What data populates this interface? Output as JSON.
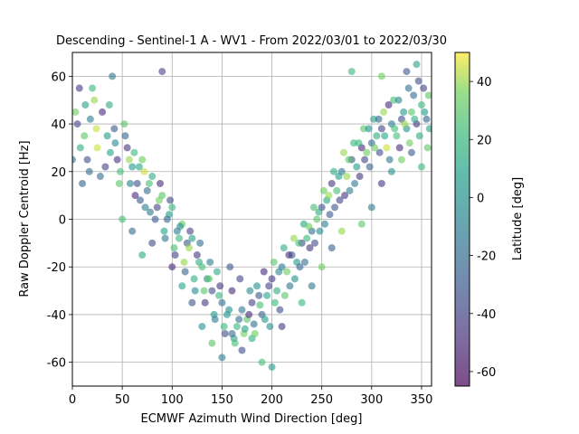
{
  "chart_data": {
    "type": "scatter",
    "title": "Descending - Sentinel-1 A - WV1 - From 2022/03/01 to 2022/03/30",
    "xlabel": "ECMWF Azimuth Wind Direction [deg]",
    "ylabel": "Raw Doppler Centroid [Hz]",
    "xlim": [
      0,
      360
    ],
    "ylim": [
      -70,
      70
    ],
    "xticks": [
      0,
      50,
      100,
      150,
      200,
      250,
      300,
      350
    ],
    "yticks": [
      -60,
      -40,
      -20,
      0,
      20,
      40,
      60
    ],
    "grid": true,
    "colorbar": {
      "label": "Latitude [deg]",
      "range": [
        -65,
        50
      ],
      "ticks": [
        -60,
        -40,
        -20,
        0,
        20,
        40
      ],
      "colormap": "viridis"
    },
    "points": [
      [
        5,
        40,
        -40
      ],
      [
        12,
        35,
        30
      ],
      [
        18,
        42,
        -10
      ],
      [
        25,
        30,
        45
      ],
      [
        30,
        45,
        -50
      ],
      [
        38,
        28,
        10
      ],
      [
        42,
        38,
        -30
      ],
      [
        48,
        20,
        25
      ],
      [
        55,
        30,
        -45
      ],
      [
        60,
        22,
        5
      ],
      [
        65,
        15,
        -35
      ],
      [
        70,
        25,
        35
      ],
      [
        75,
        12,
        -20
      ],
      [
        80,
        18,
        15
      ],
      [
        85,
        5,
        -40
      ],
      [
        90,
        10,
        30
      ],
      [
        95,
        0,
        -25
      ],
      [
        100,
        5,
        20
      ],
      [
        105,
        -5,
        -10
      ],
      [
        110,
        -2,
        35
      ],
      [
        115,
        -10,
        -30
      ],
      [
        120,
        -8,
        10
      ],
      [
        125,
        -15,
        -45
      ],
      [
        130,
        -20,
        25
      ],
      [
        135,
        -25,
        0
      ],
      [
        140,
        -30,
        -35
      ],
      [
        145,
        -22,
        15
      ],
      [
        150,
        -35,
        -20
      ],
      [
        155,
        -40,
        5
      ],
      [
        160,
        -30,
        -50
      ],
      [
        165,
        -45,
        20
      ],
      [
        170,
        -38,
        -15
      ],
      [
        175,
        -42,
        30
      ],
      [
        180,
        -35,
        -40
      ],
      [
        185,
        -28,
        0
      ],
      [
        190,
        -40,
        -25
      ],
      [
        195,
        -32,
        10
      ],
      [
        200,
        -25,
        -45
      ],
      [
        205,
        -30,
        15
      ],
      [
        210,
        -20,
        -10
      ],
      [
        215,
        -22,
        35
      ],
      [
        220,
        -15,
        -30
      ],
      [
        225,
        -18,
        5
      ],
      [
        230,
        -10,
        -40
      ],
      [
        235,
        -8,
        20
      ],
      [
        240,
        -5,
        -20
      ],
      [
        245,
        0,
        30
      ],
      [
        250,
        5,
        -35
      ],
      [
        255,
        8,
        10
      ],
      [
        260,
        15,
        -45
      ],
      [
        265,
        12,
        25
      ],
      [
        270,
        20,
        -15
      ],
      [
        275,
        18,
        40
      ],
      [
        280,
        25,
        -30
      ],
      [
        285,
        22,
        5
      ],
      [
        290,
        30,
        -50
      ],
      [
        295,
        28,
        35
      ],
      [
        300,
        32,
        -20
      ],
      [
        305,
        35,
        15
      ],
      [
        310,
        38,
        -40
      ],
      [
        315,
        30,
        45
      ],
      [
        320,
        40,
        -10
      ],
      [
        325,
        35,
        25
      ],
      [
        330,
        42,
        -35
      ],
      [
        335,
        38,
        0
      ],
      [
        340,
        45,
        30
      ],
      [
        345,
        40,
        -45
      ],
      [
        350,
        48,
        20
      ],
      [
        355,
        42,
        -25
      ],
      [
        358,
        38,
        10
      ],
      [
        8,
        30,
        15
      ],
      [
        15,
        25,
        -35
      ],
      [
        22,
        50,
        40
      ],
      [
        28,
        18,
        -20
      ],
      [
        35,
        35,
        5
      ],
      [
        45,
        25,
        -45
      ],
      [
        52,
        40,
        30
      ],
      [
        58,
        15,
        -10
      ],
      [
        62,
        28,
        20
      ],
      [
        68,
        8,
        -30
      ],
      [
        72,
        20,
        45
      ],
      [
        78,
        3,
        -15
      ],
      [
        88,
        15,
        -50
      ],
      [
        92,
        -5,
        10
      ],
      [
        98,
        8,
        -35
      ],
      [
        102,
        -12,
        25
      ],
      [
        108,
        -3,
        -5
      ],
      [
        112,
        -18,
        40
      ],
      [
        118,
        -5,
        -40
      ],
      [
        122,
        -25,
        15
      ],
      [
        128,
        -10,
        -20
      ],
      [
        132,
        -30,
        30
      ],
      [
        138,
        -18,
        -10
      ],
      [
        142,
        -40,
        5
      ],
      [
        148,
        -28,
        -45
      ],
      [
        152,
        -45,
        20
      ],
      [
        158,
        -20,
        -30
      ],
      [
        162,
        -50,
        10
      ],
      [
        168,
        -25,
        -40
      ],
      [
        172,
        -48,
        35
      ],
      [
        178,
        -30,
        -5
      ],
      [
        182,
        -44,
        -20
      ],
      [
        188,
        -36,
        25
      ],
      [
        192,
        -22,
        -50
      ],
      [
        198,
        -45,
        0
      ],
      [
        202,
        -18,
        30
      ],
      [
        208,
        -38,
        -35
      ],
      [
        212,
        -12,
        15
      ],
      [
        218,
        -28,
        -15
      ],
      [
        222,
        -8,
        40
      ],
      [
        228,
        -20,
        -25
      ],
      [
        232,
        -2,
        10
      ],
      [
        238,
        -12,
        -45
      ],
      [
        242,
        5,
        25
      ],
      [
        248,
        -5,
        -5
      ],
      [
        252,
        12,
        35
      ],
      [
        258,
        2,
        -30
      ],
      [
        262,
        20,
        15
      ],
      [
        268,
        8,
        -40
      ],
      [
        272,
        28,
        40
      ],
      [
        278,
        12,
        -10
      ],
      [
        282,
        32,
        20
      ],
      [
        288,
        18,
        -45
      ],
      [
        292,
        38,
        30
      ],
      [
        298,
        22,
        -25
      ],
      [
        302,
        42,
        10
      ],
      [
        308,
        28,
        -35
      ],
      [
        312,
        45,
        40
      ],
      [
        318,
        25,
        -15
      ],
      [
        322,
        50,
        25
      ],
      [
        328,
        30,
        -50
      ],
      [
        332,
        45,
        5
      ],
      [
        338,
        32,
        35
      ],
      [
        342,
        52,
        -20
      ],
      [
        348,
        35,
        15
      ],
      [
        352,
        55,
        -40
      ],
      [
        356,
        30,
        30
      ],
      [
        20,
        55,
        20
      ],
      [
        40,
        60,
        -15
      ],
      [
        310,
        60,
        35
      ],
      [
        335,
        62,
        -30
      ],
      [
        345,
        65,
        10
      ],
      [
        10,
        15,
        -25
      ],
      [
        90,
        62,
        -40
      ],
      [
        280,
        62,
        20
      ],
      [
        150,
        -58,
        -10
      ],
      [
        190,
        -60,
        25
      ],
      [
        170,
        -55,
        -35
      ],
      [
        200,
        -62,
        5
      ],
      [
        140,
        -52,
        30
      ],
      [
        160,
        -48,
        -20
      ],
      [
        180,
        -50,
        15
      ],
      [
        210,
        -45,
        -45
      ],
      [
        130,
        -45,
        0
      ],
      [
        120,
        -35,
        -30
      ],
      [
        230,
        -35,
        20
      ],
      [
        240,
        -28,
        -15
      ],
      [
        250,
        -20,
        35
      ],
      [
        100,
        -20,
        -50
      ],
      [
        110,
        -28,
        10
      ],
      [
        260,
        -12,
        -25
      ],
      [
        270,
        -5,
        40
      ],
      [
        80,
        -10,
        -35
      ],
      [
        70,
        -15,
        15
      ],
      [
        60,
        -5,
        -20
      ],
      [
        50,
        0,
        25
      ],
      [
        300,
        5,
        -10
      ],
      [
        290,
        -2,
        30
      ],
      [
        310,
        15,
        -45
      ],
      [
        320,
        20,
        0
      ],
      [
        330,
        25,
        35
      ],
      [
        340,
        28,
        -30
      ],
      [
        350,
        22,
        20
      ],
      [
        0,
        25,
        -15
      ],
      [
        3,
        45,
        35
      ],
      [
        7,
        55,
        -45
      ],
      [
        13,
        48,
        10
      ],
      [
        17,
        20,
        -20
      ],
      [
        24,
        38,
        45
      ],
      [
        33,
        22,
        -40
      ],
      [
        37,
        48,
        15
      ],
      [
        43,
        32,
        -5
      ],
      [
        47,
        15,
        30
      ],
      [
        53,
        35,
        -25
      ],
      [
        57,
        25,
        40
      ],
      [
        63,
        10,
        -50
      ],
      [
        67,
        22,
        10
      ],
      [
        73,
        5,
        -10
      ],
      [
        77,
        15,
        25
      ],
      [
        83,
        0,
        -30
      ],
      [
        87,
        8,
        35
      ],
      [
        93,
        -8,
        -15
      ],
      [
        97,
        2,
        5
      ],
      [
        103,
        -15,
        -40
      ],
      [
        107,
        -8,
        20
      ],
      [
        113,
        -22,
        -25
      ],
      [
        117,
        -12,
        40
      ],
      [
        123,
        -30,
        -5
      ],
      [
        127,
        -18,
        15
      ],
      [
        133,
        -35,
        -45
      ],
      [
        137,
        -25,
        30
      ],
      [
        143,
        -42,
        -10
      ],
      [
        147,
        -32,
        20
      ],
      [
        153,
        -48,
        -35
      ],
      [
        157,
        -38,
        0
      ],
      [
        163,
        -52,
        25
      ],
      [
        167,
        -42,
        -20
      ],
      [
        173,
        -46,
        10
      ],
      [
        177,
        -40,
        -50
      ],
      [
        183,
        -48,
        35
      ],
      [
        187,
        -32,
        -30
      ],
      [
        193,
        -42,
        5
      ],
      [
        197,
        -28,
        -40
      ],
      [
        203,
        -35,
        20
      ],
      [
        207,
        -22,
        -5
      ],
      [
        213,
        -32,
        30
      ],
      [
        217,
        -15,
        -45
      ],
      [
        223,
        -25,
        0
      ],
      [
        227,
        -10,
        25
      ],
      [
        233,
        -18,
        -20
      ],
      [
        237,
        -3,
        35
      ],
      [
        243,
        -10,
        -35
      ],
      [
        247,
        3,
        15
      ],
      [
        253,
        -2,
        -10
      ],
      [
        257,
        10,
        40
      ],
      [
        263,
        5,
        -30
      ],
      [
        267,
        18,
        5
      ],
      [
        273,
        10,
        -45
      ],
      [
        277,
        25,
        30
      ],
      [
        283,
        15,
        -15
      ],
      [
        287,
        32,
        20
      ],
      [
        293,
        25,
        -40
      ],
      [
        297,
        38,
        0
      ],
      [
        303,
        30,
        35
      ],
      [
        307,
        42,
        -25
      ],
      [
        313,
        35,
        10
      ],
      [
        317,
        48,
        -50
      ],
      [
        323,
        38,
        25
      ],
      [
        327,
        50,
        -5
      ],
      [
        333,
        40,
        40
      ],
      [
        337,
        55,
        -20
      ],
      [
        343,
        42,
        15
      ],
      [
        347,
        58,
        -35
      ],
      [
        353,
        45,
        5
      ],
      [
        357,
        52,
        30
      ]
    ]
  }
}
